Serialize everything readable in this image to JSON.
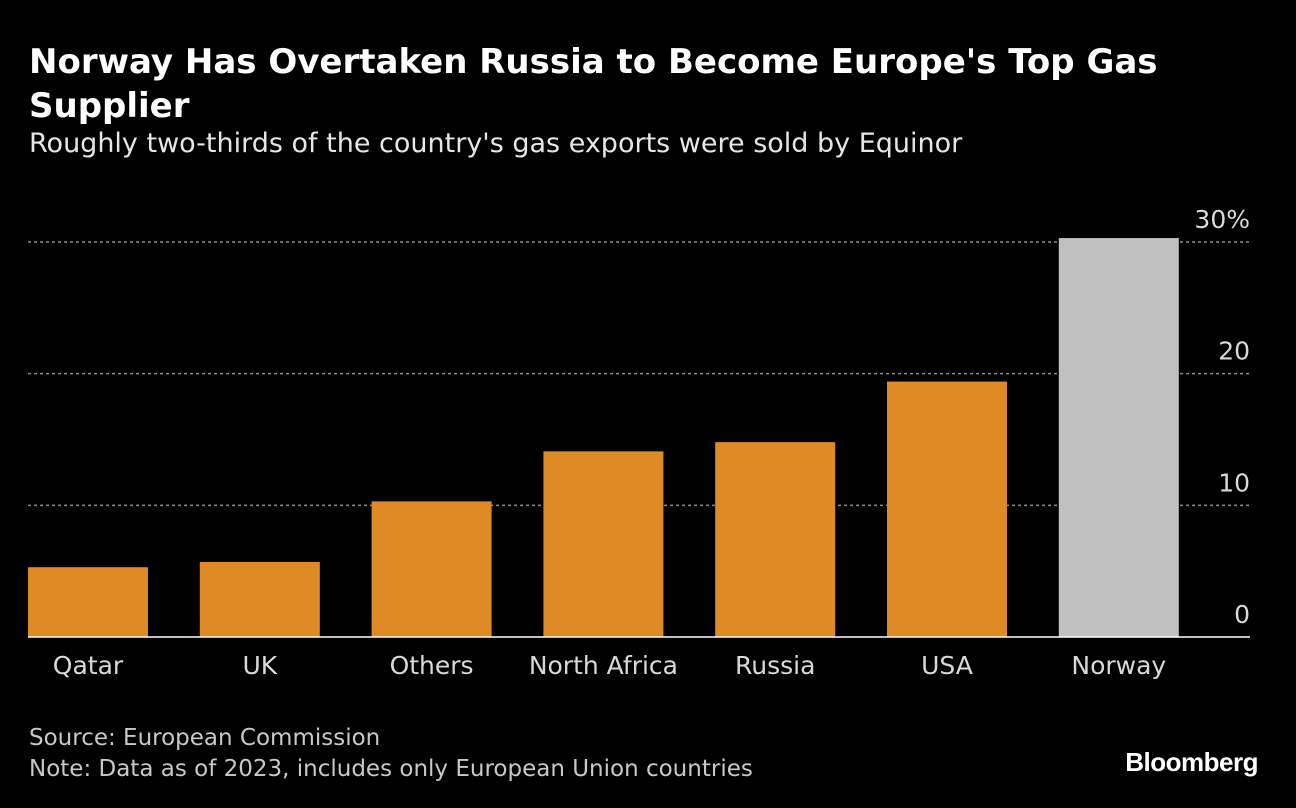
{
  "header": {
    "title": "Norway Has Overtaken Russia to Become Europe's Top Gas Supplier",
    "subtitle": "Roughly two-thirds of the country's gas exports were sold by Equinor"
  },
  "chart_data": {
    "type": "bar",
    "categories": [
      "Qatar",
      "UK",
      "Others",
      "North Africa",
      "Russia",
      "USA",
      "Norway"
    ],
    "values": [
      5.3,
      5.7,
      10.3,
      14.1,
      14.8,
      19.4,
      30.3
    ],
    "highlight_category": "Norway",
    "y_ticks": [
      0,
      10,
      20,
      30
    ],
    "y_tick_labels": [
      "0",
      "10",
      "20",
      "30%"
    ],
    "ylim": [
      0,
      30
    ],
    "grid": true,
    "title": "Norway Has Overtaken Russia to Become Europe's Top Gas Supplier",
    "subtitle": "Roughly two-thirds of the country's gas exports were sold by Equinor",
    "xlabel": "",
    "ylabel": "",
    "y_axis_position": "right",
    "colors": {
      "bar": "#df8b25",
      "highlight": "#c0c0c0",
      "grid": "#8a8a8a",
      "axis": "#ffffff",
      "tick_label": "#d9d9d9"
    }
  },
  "footer": {
    "source": "Source: European Commission",
    "note": "Note: Data as of 2023, includes only European Union countries"
  },
  "brand": "Bloomberg"
}
